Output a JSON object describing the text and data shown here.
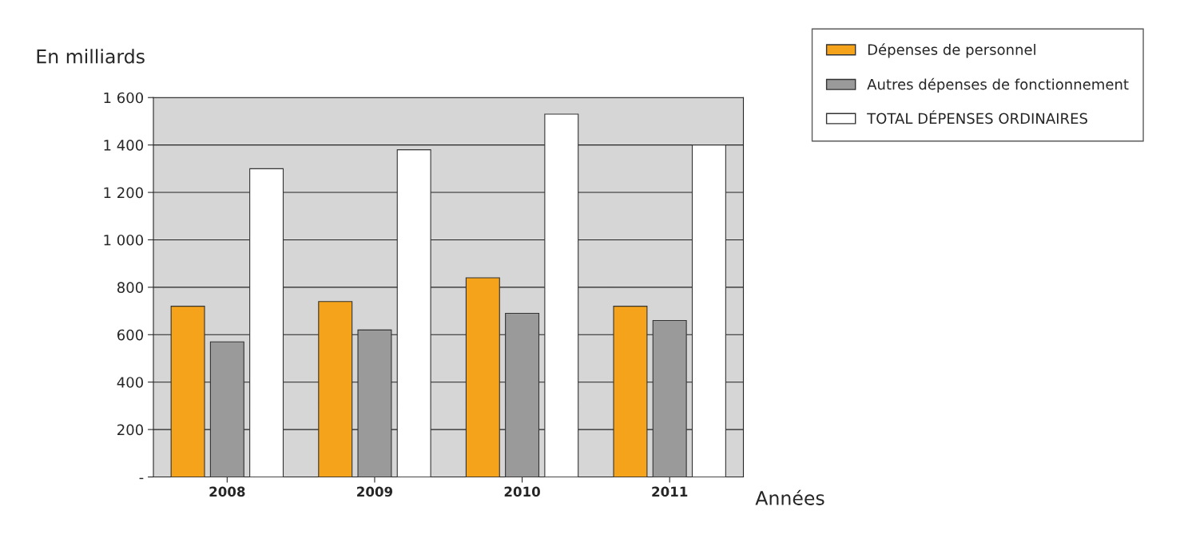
{
  "chart_data": {
    "type": "bar",
    "ylabel": "En milliards",
    "xlabel": "Années",
    "categories": [
      "2008",
      "2009",
      "2010",
      "2011"
    ],
    "series": [
      {
        "name": "Dépenses de personnel",
        "color": "#f5a31a",
        "values": [
          720,
          740,
          840,
          720
        ]
      },
      {
        "name": "Autres dépenses de fonctionnement",
        "color": "#9a9a9a",
        "values": [
          570,
          620,
          690,
          660
        ]
      },
      {
        "name": "TOTAL DÉPENSES ORDINAIRES",
        "color": "#ffffff",
        "values": [
          1300,
          1380,
          1530,
          1400
        ]
      }
    ],
    "ylim": [
      0,
      1600
    ],
    "yticks": [
      {
        "value": 0,
        "label": "-"
      },
      200,
      400,
      600,
      800,
      {
        "value": 1000,
        "label": "1 000"
      },
      {
        "value": 1200,
        "label": "1 200"
      },
      {
        "value": 1400,
        "label": "1 400"
      },
      {
        "value": 1600,
        "label": "1 600"
      }
    ],
    "grid": "y",
    "legend": "top right"
  }
}
